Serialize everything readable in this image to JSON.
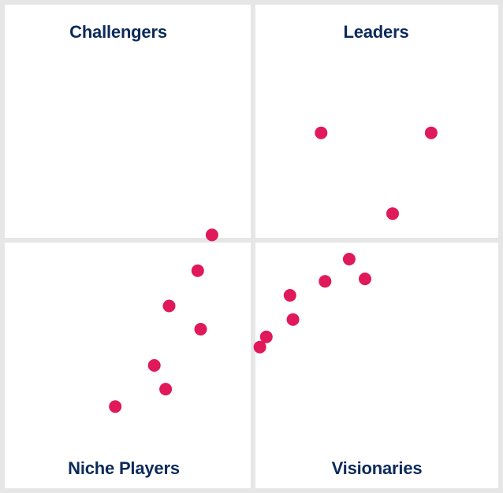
{
  "chart_data": {
    "type": "scatter",
    "title": "",
    "xlabel": "",
    "ylabel": "",
    "grid": false,
    "legend": "none",
    "xlim": [
      0,
      100
    ],
    "ylim": [
      0,
      100
    ],
    "quadrants": {
      "top_left": "Challengers",
      "top_right": "Leaders",
      "bottom_left": "Niche Players",
      "bottom_right": "Visionaries"
    },
    "series": [
      {
        "color": "#e0195a",
        "points": [
          {
            "x": 64.1,
            "y": 73.5
          },
          {
            "x": 86.4,
            "y": 73.5
          },
          {
            "x": 78.6,
            "y": 56.8
          },
          {
            "x": 42.0,
            "y": 52.4
          },
          {
            "x": 69.8,
            "y": 47.4
          },
          {
            "x": 73.0,
            "y": 43.3
          },
          {
            "x": 39.1,
            "y": 45.0
          },
          {
            "x": 64.9,
            "y": 42.8
          },
          {
            "x": 57.8,
            "y": 39.9
          },
          {
            "x": 33.3,
            "y": 37.7
          },
          {
            "x": 39.7,
            "y": 32.9
          },
          {
            "x": 58.4,
            "y": 34.9
          },
          {
            "x": 53.0,
            "y": 31.3
          },
          {
            "x": 51.7,
            "y": 29.2
          },
          {
            "x": 30.3,
            "y": 25.4
          },
          {
            "x": 32.6,
            "y": 20.5
          },
          {
            "x": 22.4,
            "y": 16.9
          }
        ]
      }
    ]
  }
}
